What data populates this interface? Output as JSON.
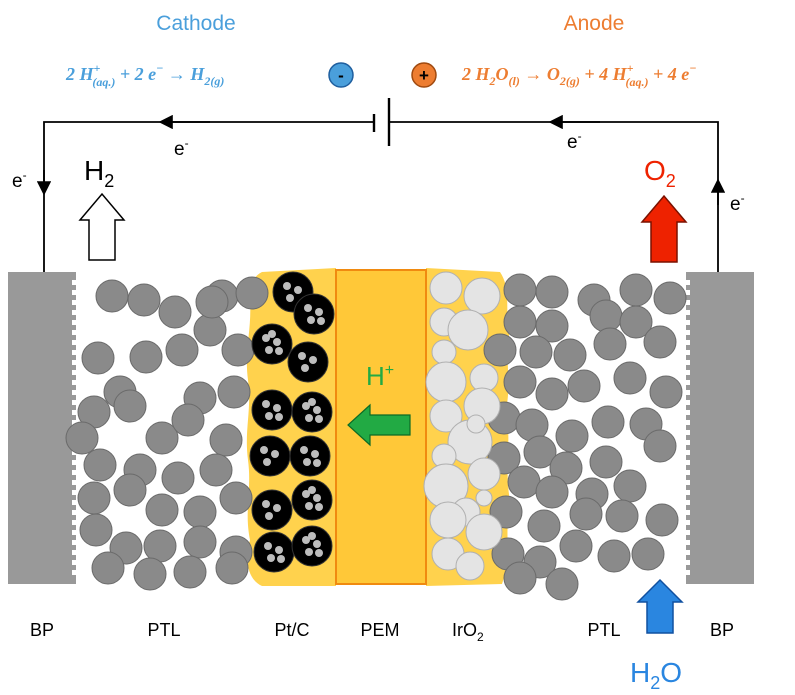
{
  "header": {
    "cathode": "Cathode",
    "anode": "Anode",
    "cathode_reaction": {
      "p1": "2 H",
      "sup1": "+",
      "sub1": "(aq.)",
      "p2": " + 2 e",
      "sup2": "−",
      "arrow": " → ",
      "p3": "H",
      "sub3": "2(g)"
    },
    "anode_reaction": {
      "p1": "2 H",
      "sub1": "2",
      "p2": "O",
      "sub2": "(l)",
      "arrow": " → ",
      "p3": "O",
      "sub3": "2(g)",
      "p4": " + 4 H",
      "sup4": "+",
      "sub4": "(aq.)",
      "p5": " + 4 e",
      "sup5": "−"
    },
    "minus_sign": "-",
    "plus_sign": "+"
  },
  "circuit": {
    "electron": "e",
    "electron_sup": "-"
  },
  "gases": {
    "h2": "H",
    "h2_sub": "2",
    "o2": "O",
    "o2_sub": "2",
    "water": "H",
    "water_sub": "2",
    "water_tail": "O"
  },
  "proton": {
    "label": "H",
    "sup": "+"
  },
  "layers": {
    "bp_left": "BP",
    "ptl_left": "PTL",
    "ptc": "Pt/C",
    "pem": "PEM",
    "iro2": "IrO",
    "iro2_sub": "2",
    "ptl_right": "PTL",
    "bp_right": "BP"
  },
  "colors": {
    "cathode_blue": "#4a9fdb",
    "anode_orange": "#ed7d31",
    "oxygen_red": "#ee2200",
    "proton_green": "#22aa44",
    "water_blue": "#2a86e0",
    "pem_yellow": "#ffc838",
    "pem_border": "#f08a10",
    "ionomer_yellow": "#ffd24d",
    "plate_gray": "#999999",
    "particle_gray": "#8a8a8a",
    "iro2_light": "#e4e4e4",
    "catalyst_black": "#000000"
  }
}
